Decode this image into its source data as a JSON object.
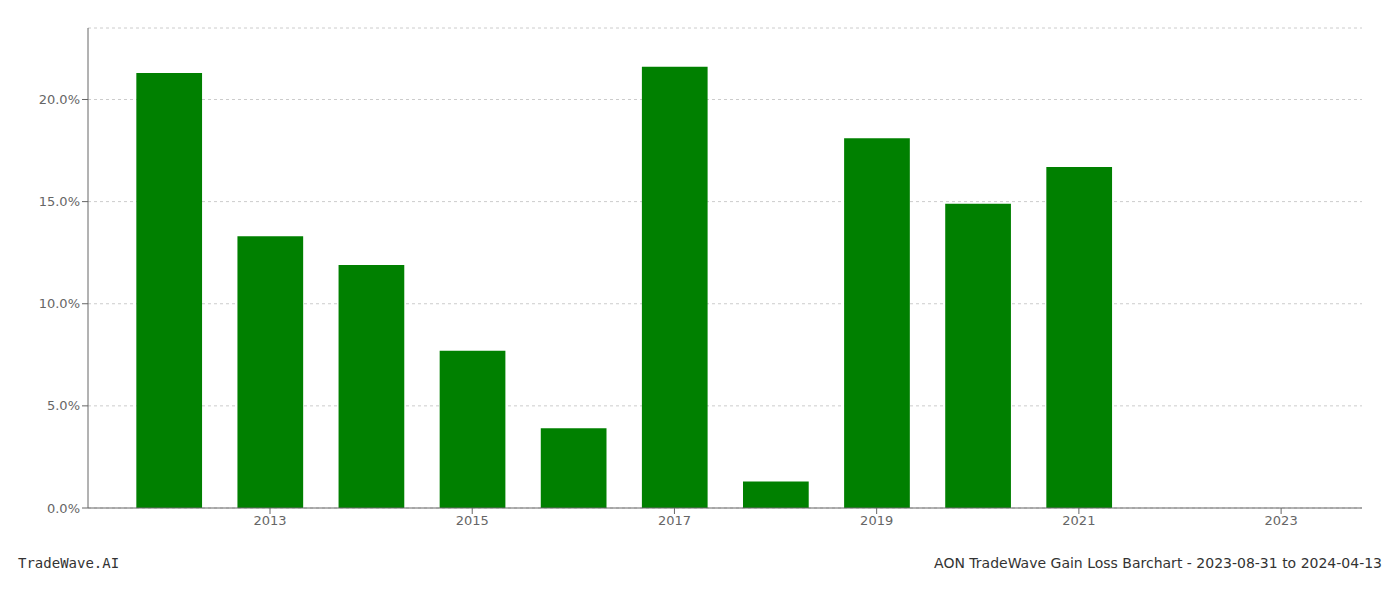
{
  "chart_data": {
    "type": "bar",
    "title": "AON TradeWave Gain Loss Barchart - 2023-08-31 to 2024-04-13",
    "subtitle": "TradeWave.AI",
    "x": [
      2012,
      2013,
      2014,
      2015,
      2016,
      2017,
      2018,
      2019,
      2020,
      2021,
      2022
    ],
    "values": [
      0.213,
      0.133,
      0.119,
      0.077,
      0.039,
      0.216,
      0.013,
      0.181,
      0.149,
      0.167,
      0.0
    ],
    "color": "#008000",
    "xlim": [
      2011.2,
      2023.8
    ],
    "xticks": [
      2013,
      2015,
      2017,
      2019,
      2021,
      2023
    ],
    "ylim": [
      0,
      0.235
    ],
    "yticks": [
      {
        "value": 0.0,
        "label": "0.0%"
      },
      {
        "value": 0.05,
        "label": "5.0%"
      },
      {
        "value": 0.1,
        "label": "10.0%"
      },
      {
        "value": 0.15,
        "label": "15.0%"
      },
      {
        "value": 0.2,
        "label": "20.0%"
      }
    ],
    "grid": "y"
  }
}
